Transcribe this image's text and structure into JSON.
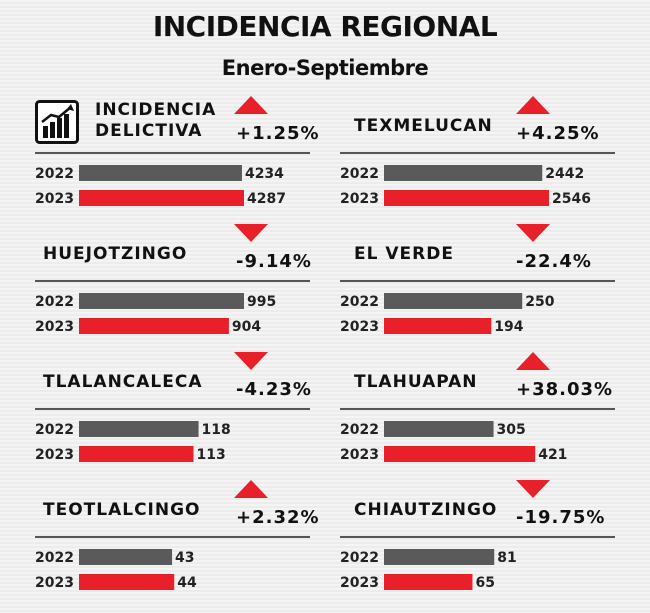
{
  "title": "INCIDENCIA REGIONAL",
  "subtitle": "Enero-Septiembre",
  "colors": {
    "y2022": "#5a5a5a",
    "y2023": "#e8202a",
    "up": "#e8202a",
    "down": "#e8202a"
  },
  "chart_data": {
    "type": "bar",
    "series_names": [
      "2022",
      "2023"
    ],
    "panels": [
      {
        "name": "INCIDENCIA DELICTIVA",
        "change": "+1.25%",
        "direction": "up",
        "years": [
          "2022",
          "2023"
        ],
        "values": [
          4234,
          4287
        ],
        "icon": "bar-chart-icon"
      },
      {
        "name": "TEXMELUCAN",
        "change": "+4.25%",
        "direction": "up",
        "years": [
          "2022",
          "2023"
        ],
        "values": [
          2442,
          2546
        ]
      },
      {
        "name": "HUEJOTZINGO",
        "change": "-9.14%",
        "direction": "down",
        "years": [
          "2022",
          "2023"
        ],
        "values": [
          995,
          904
        ]
      },
      {
        "name": "EL VERDE",
        "change": "-22.4%",
        "direction": "down",
        "years": [
          "2022",
          "2023"
        ],
        "values": [
          250,
          194
        ]
      },
      {
        "name": "TLALANCALECA",
        "change": "-4.23%",
        "direction": "down",
        "years": [
          "2022",
          "2023"
        ],
        "values": [
          118,
          113
        ]
      },
      {
        "name": "TLAHUAPAN",
        "change": "+38.03%",
        "direction": "up",
        "years": [
          "2022",
          "2023"
        ],
        "values": [
          305,
          421
        ]
      },
      {
        "name": "TEOTLALCINGO",
        "change": "+2.32%",
        "direction": "up",
        "years": [
          "2022",
          "2023"
        ],
        "values": [
          43,
          44
        ]
      },
      {
        "name": "CHIAUTZINGO",
        "change": "-19.75%",
        "direction": "down",
        "years": [
          "2022",
          "2023"
        ],
        "values": [
          81,
          65
        ]
      }
    ]
  }
}
